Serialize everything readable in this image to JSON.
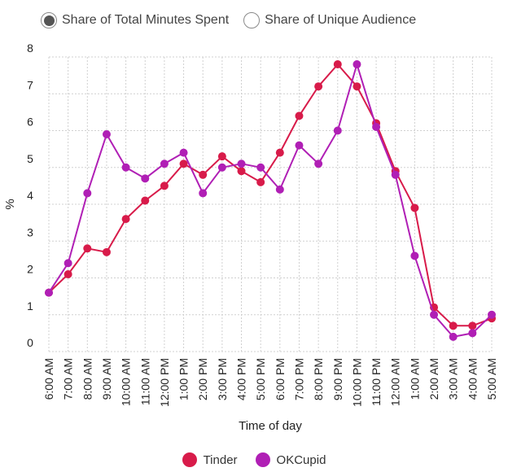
{
  "toggle": {
    "options": [
      {
        "label": "Share of Total Minutes Spent",
        "selected": true
      },
      {
        "label": "Share of Unique Audience",
        "selected": false
      }
    ]
  },
  "chart_data": {
    "type": "line",
    "title": "",
    "xlabel": "Time of day",
    "ylabel": "%",
    "ylim": [
      0,
      8
    ],
    "yticks": [
      0,
      1,
      2,
      3,
      4,
      5,
      6,
      7,
      8
    ],
    "grid": true,
    "legend_position": "bottom",
    "categories": [
      "6:00 AM",
      "7:00 AM",
      "8:00 AM",
      "9:00 AM",
      "10:00 AM",
      "11:00 AM",
      "12:00 PM",
      "1:00 PM",
      "2:00 PM",
      "3:00 PM",
      "4:00 PM",
      "5:00 PM",
      "6:00 PM",
      "7:00 PM",
      "8:00 PM",
      "9:00 PM",
      "10:00 PM",
      "11:00 PM",
      "12:00 AM",
      "1:00 AM",
      "2:00 AM",
      "3:00 AM",
      "4:00 AM",
      "5:00 AM"
    ],
    "series": [
      {
        "name": "Tinder",
        "color": "#d81b4a",
        "values": [
          1.6,
          2.1,
          2.8,
          2.7,
          3.6,
          4.1,
          4.5,
          5.1,
          4.8,
          5.3,
          4.9,
          4.6,
          5.4,
          6.4,
          7.2,
          7.8,
          7.2,
          6.2,
          4.9,
          3.9,
          1.2,
          0.7,
          0.7,
          0.9
        ]
      },
      {
        "name": "OKCupid",
        "color": "#b01fb5",
        "values": [
          1.6,
          2.4,
          4.3,
          5.9,
          5.0,
          4.7,
          5.1,
          5.4,
          4.3,
          5.0,
          5.1,
          5.0,
          4.4,
          5.6,
          5.1,
          6.0,
          7.8,
          6.1,
          4.8,
          2.6,
          1.0,
          0.4,
          0.5,
          1.0
        ]
      }
    ]
  }
}
